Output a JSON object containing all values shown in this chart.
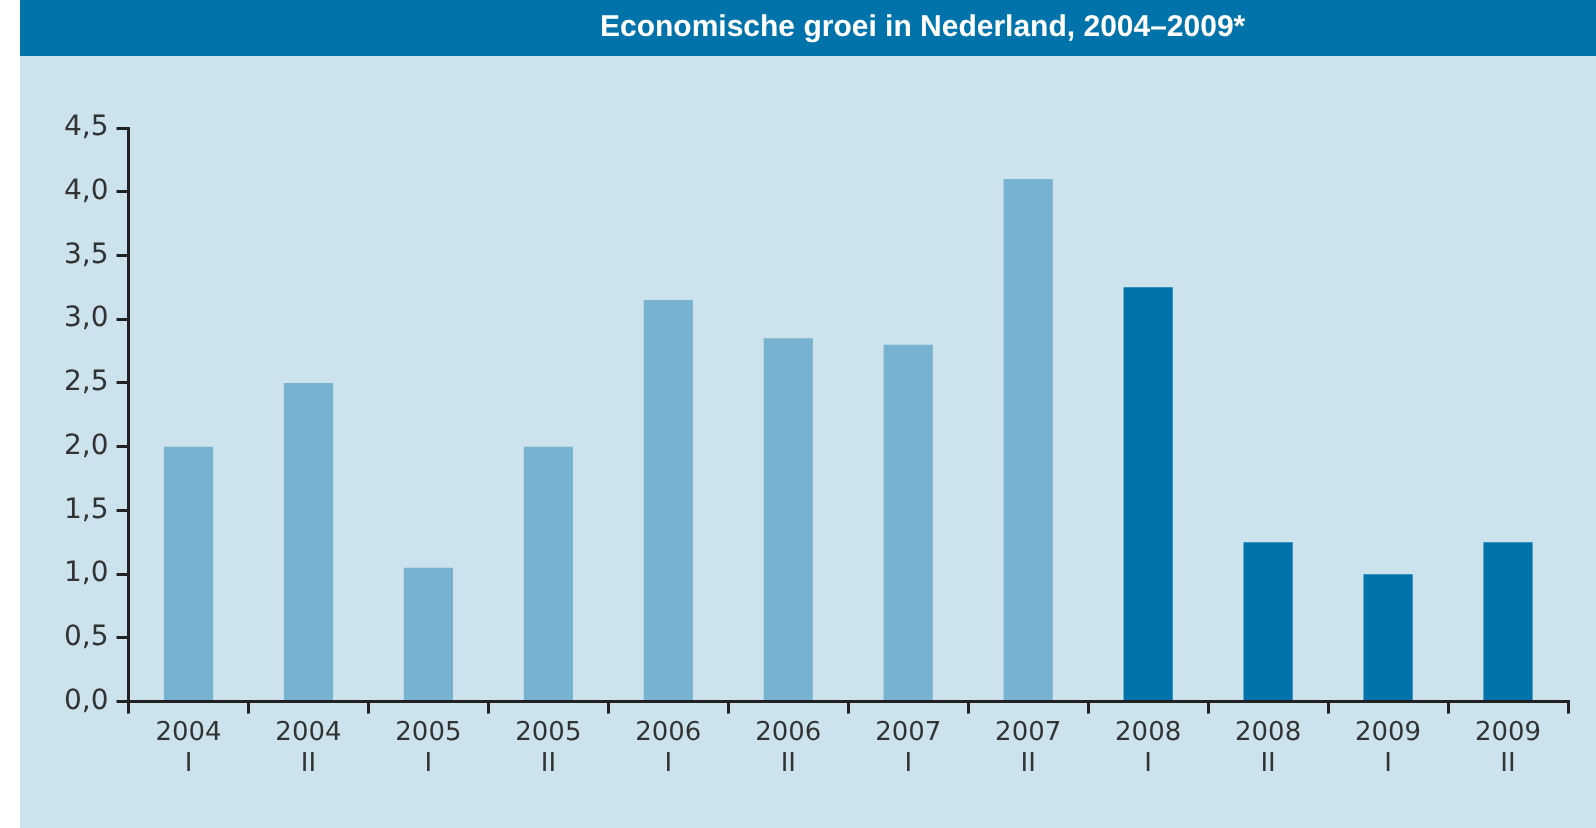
{
  "chart_data": {
    "type": "bar",
    "title": "Economische groei in Nederland, 2004–2009*",
    "categories": [
      "2004\nI",
      "2004\nII",
      "2005\nI",
      "2005\nII",
      "2006\nI",
      "2006\nII",
      "2007\nI",
      "2007\nII",
      "2008\nI",
      "2008\nII",
      "2009\nI",
      "2009\nII"
    ],
    "values": [
      2.0,
      2.5,
      1.05,
      2.0,
      3.15,
      2.85,
      2.8,
      4.1,
      3.25,
      1.25,
      1.0,
      1.25
    ],
    "colors": [
      "#77b2d0",
      "#77b2d0",
      "#77b2d0",
      "#77b2d0",
      "#77b2d0",
      "#77b2d0",
      "#77b2d0",
      "#77b2d0",
      "#0073aa",
      "#0073aa",
      "#0073aa",
      "#0073aa"
    ],
    "ylim": [
      0,
      4.5
    ],
    "yticks": [
      {
        "value": 0,
        "label": "0,0"
      },
      {
        "value": 0.5,
        "label": "0,5"
      },
      {
        "value": 1,
        "label": "1,0"
      },
      {
        "value": 1.5,
        "label": "1,5"
      },
      {
        "value": 2,
        "label": "2,0"
      },
      {
        "value": 2.5,
        "label": "2,5"
      },
      {
        "value": 3,
        "label": "3,0"
      },
      {
        "value": 3.5,
        "label": "3,5"
      },
      {
        "value": 4,
        "label": "4,0"
      },
      {
        "value": 4.5,
        "label": "4,5"
      }
    ],
    "grid": false,
    "legend": false
  }
}
